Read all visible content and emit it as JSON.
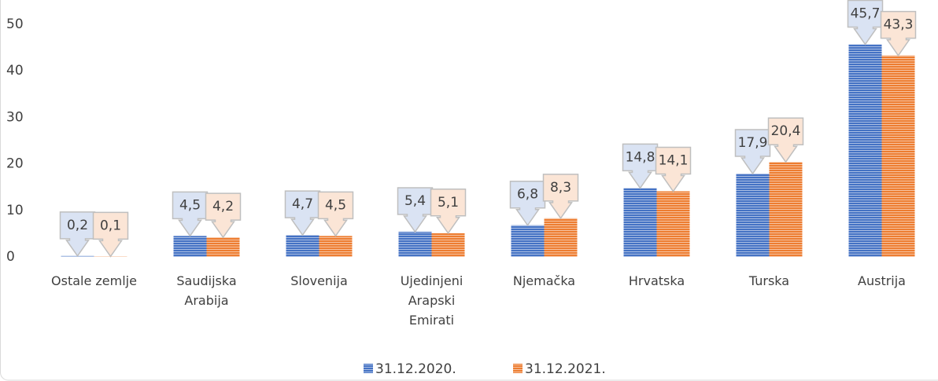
{
  "chart_data": {
    "type": "bar",
    "categories": [
      "Ostale zemlje",
      "Saudijska Arabija",
      "Slovenija",
      "Ujedinjeni Arapski Emirati",
      "Njemačka",
      "Hrvatska",
      "Turska",
      "Austrija"
    ],
    "series": [
      {
        "name": "31.12.2020.",
        "color": "#4472c4",
        "values": [
          0.2,
          4.5,
          4.7,
          5.4,
          6.8,
          14.8,
          17.9,
          45.7
        ],
        "value_labels": [
          "0,2",
          "4,5",
          "4,7",
          "5,4",
          "6,8",
          "14,8",
          "17,9",
          "45,7"
        ]
      },
      {
        "name": "31.12.2021.",
        "color": "#ed7d31",
        "values": [
          0.1,
          4.2,
          4.5,
          5.1,
          8.3,
          14.1,
          20.4,
          43.3
        ],
        "value_labels": [
          "0,1",
          "4,2",
          "4,5",
          "5,1",
          "8,3",
          "14,1",
          "20,4",
          "43,3"
        ]
      }
    ],
    "ylim": [
      0,
      50
    ],
    "yticks": [
      0,
      10,
      20,
      30,
      40,
      50
    ],
    "grid": false,
    "legend": "bottom"
  }
}
